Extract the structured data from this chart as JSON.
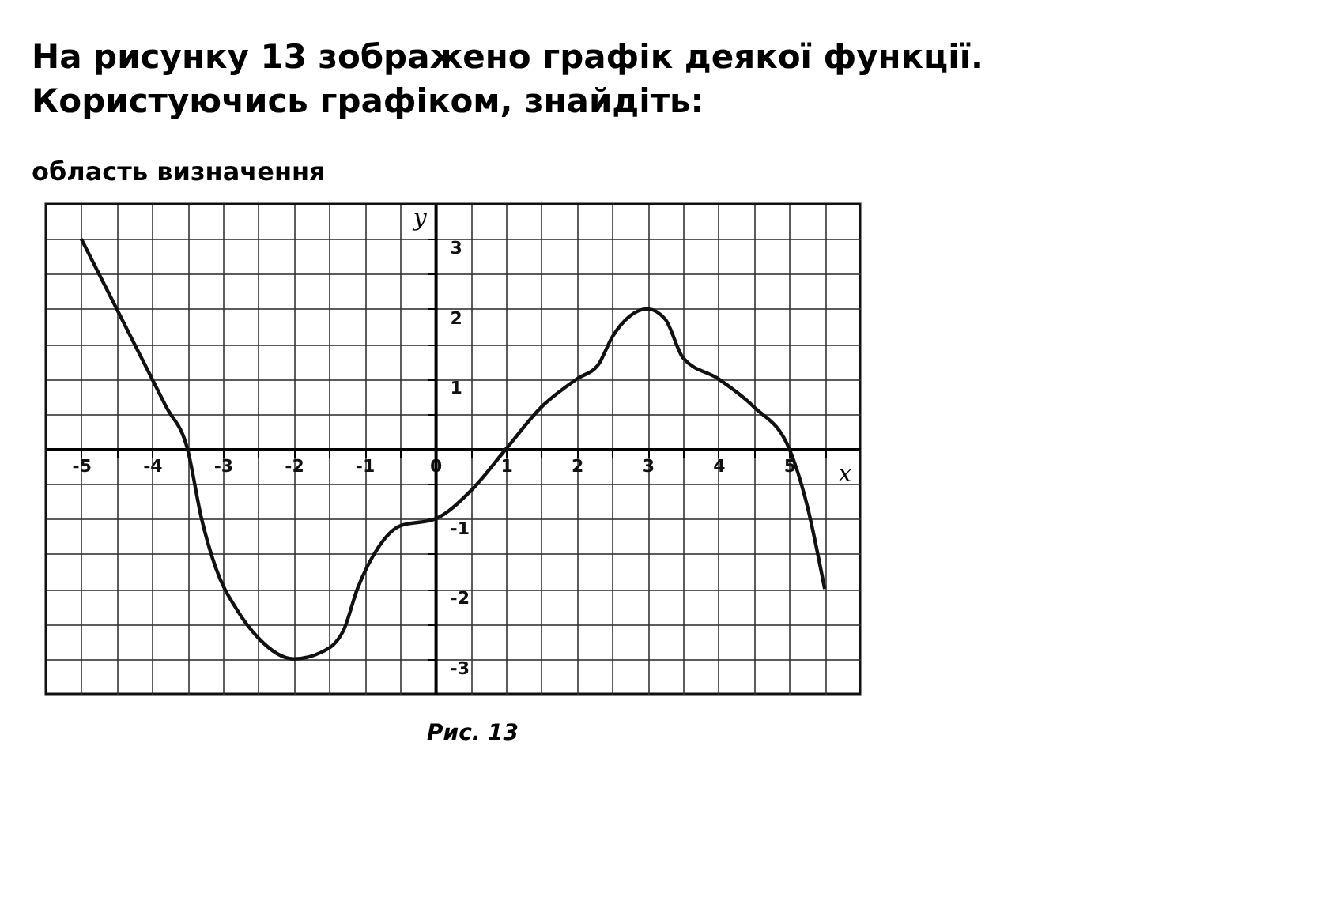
{
  "chart_data": {
    "type": "line",
    "title": "На рисунку 13 зображено графік деякої функції. Користуючись графіком, знайдіть:",
    "subtitle": "область визначення",
    "xlabel": "x",
    "ylabel": "y",
    "annotations": [
      "Рис. 13"
    ],
    "x": [
      -5,
      -4.5,
      -4,
      -3.8,
      -3.5,
      -3.3,
      -3.1,
      -2.8,
      -2.5,
      -2,
      -1.6,
      -1.3,
      -1.1,
      -0.8,
      -0.5,
      0,
      0.5,
      1,
      1.5,
      2,
      2.3,
      2.5,
      2.75,
      3,
      3.25,
      3.5,
      4,
      4.5,
      5,
      5.25,
      5.5
    ],
    "series": [
      {
        "color": "#111111",
        "values": [
          3,
          2,
          1,
          0.6,
          0,
          -1,
          -1.7,
          -2.3,
          -2.7,
          -3,
          -2.9,
          -2.6,
          -2,
          -1.4,
          -1.1,
          -1,
          -0.6,
          0,
          0.6,
          1,
          1.2,
          1.6,
          1.9,
          2,
          1.85,
          1.3,
          1,
          0.6,
          0,
          -0.8,
          -2
        ]
      }
    ],
    "xlim": [
      -5.5,
      6
    ],
    "ylim": [
      -3.5,
      3.5
    ],
    "xticks": [
      -5,
      {
        "value": -4.5,
        "label": null
      },
      -4,
      {
        "value": -3.5,
        "label": null
      },
      -3,
      {
        "value": -2.5,
        "label": null
      },
      -2,
      {
        "value": -1.5,
        "label": null
      },
      -1,
      {
        "value": -0.5,
        "label": null
      },
      0,
      {
        "value": 0.5,
        "label": null
      },
      1,
      {
        "value": 1.5,
        "label": null
      },
      2,
      {
        "value": 2.5,
        "label": null
      },
      3,
      {
        "value": 3.5,
        "label": null
      },
      4,
      {
        "value": 4.5,
        "label": null
      },
      5,
      {
        "value": 5.5,
        "label": null
      }
    ],
    "yticks": [
      -3,
      {
        "value": -2.5,
        "label": null
      },
      -2,
      {
        "value": -1.5,
        "label": null
      },
      -1,
      {
        "value": -0.5,
        "label": null
      },
      {
        "value": 0,
        "label": null
      },
      {
        "value": 0.5,
        "label": null
      },
      1,
      {
        "value": 1.5,
        "label": null
      },
      2,
      {
        "value": 2.5,
        "label": null
      },
      3
    ],
    "grid": true,
    "marker": "none",
    "line_style": "solid",
    "legend": false
  }
}
